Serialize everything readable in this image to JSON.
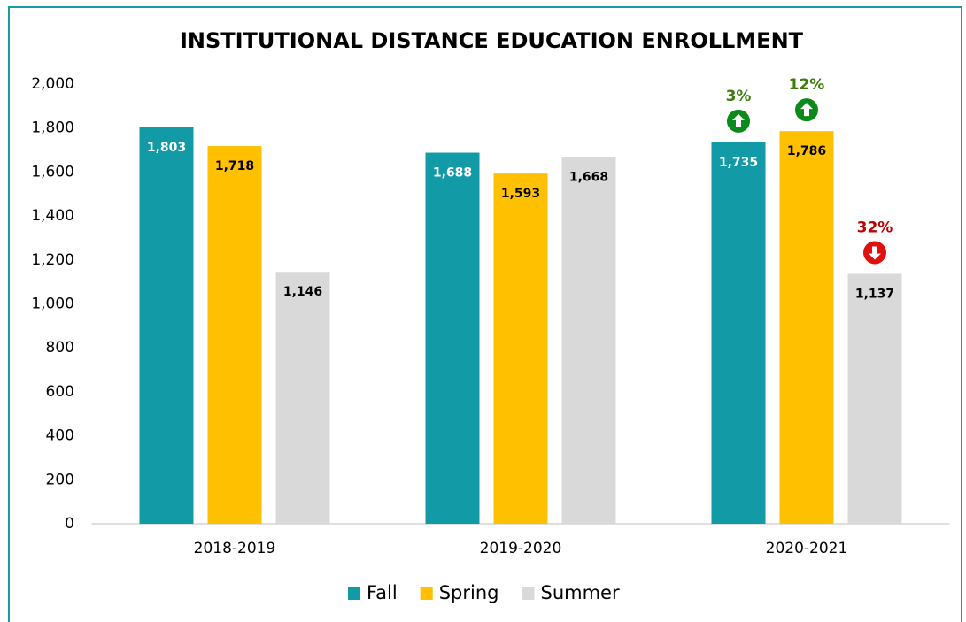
{
  "chart_data": {
    "type": "bar",
    "title": "INSTITUTIONAL DISTANCE EDUCATION ENROLLMENT",
    "categories": [
      "2018-2019",
      "2019-2020",
      "2020-2021"
    ],
    "series": [
      {
        "name": "Fall",
        "color": "#129aa6",
        "label_color": "#ffffff",
        "values": [
          1803,
          1688,
          1735
        ],
        "value_labels": [
          "1,803",
          "1,688",
          "1,735"
        ]
      },
      {
        "name": "Spring",
        "color": "#ffc000",
        "label_color": "#000000",
        "values": [
          1718,
          1593,
          1786
        ],
        "value_labels": [
          "1,718",
          "1,593",
          "1,786"
        ]
      },
      {
        "name": "Summer",
        "color": "#d9d9d9",
        "label_color": "#000000",
        "values": [
          1146,
          1668,
          1137
        ],
        "value_labels": [
          "1,146",
          "1,668",
          "1,137"
        ]
      }
    ],
    "ylim": [
      0,
      2000
    ],
    "yticks": [
      0,
      200,
      400,
      600,
      800,
      {
        "value": 1000,
        "label": "1,000"
      },
      {
        "value": 1200,
        "label": "1,200"
      },
      {
        "value": 1400,
        "label": "1,400"
      },
      {
        "value": 1600,
        "label": "1,600"
      },
      {
        "value": 1800,
        "label": "1,800"
      },
      {
        "value": 2000,
        "label": "2,000"
      }
    ],
    "grid": false,
    "legend": "bottom",
    "annotations": [
      {
        "text": "3%",
        "series": 0,
        "category": 2,
        "direction": "up",
        "color": "#3a7d0a",
        "icon_color": "#0a8a1a"
      },
      {
        "text": "12%",
        "series": 1,
        "category": 2,
        "direction": "up",
        "color": "#3a7d0a",
        "icon_color": "#0a8a1a"
      },
      {
        "text": "32%",
        "series": 2,
        "category": 2,
        "direction": "down",
        "color": "#c00000",
        "icon_color": "#e01010"
      }
    ]
  }
}
